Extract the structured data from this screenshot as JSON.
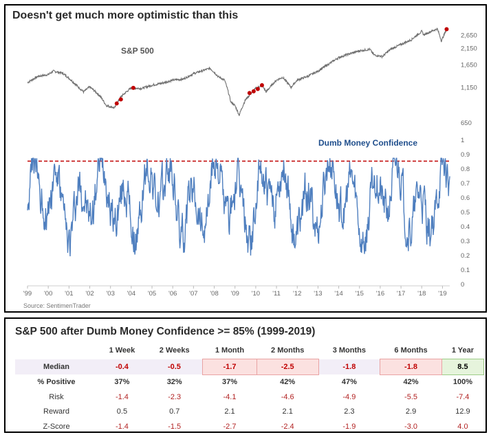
{
  "chart": {
    "title": "Doesn't get much more optimistic than this",
    "source": "Source: SentimenTrader",
    "colors": {
      "sp500": "#6e6e6e",
      "dmc": "#4f7fbf",
      "threshold": "#c00000",
      "marker": "#c00000"
    }
  },
  "chart_data": {
    "type": "line",
    "x_ticks": [
      "'99",
      "'00",
      "'01",
      "'02",
      "'03",
      "'04",
      "'05",
      "'06",
      "'07",
      "'08",
      "'09",
      "'10",
      "'11",
      "'12",
      "'13",
      "'14",
      "'15",
      "'16",
      "'17",
      "'18",
      "'19"
    ],
    "panels": [
      {
        "name": "S&P 500",
        "label": "S&P 500",
        "yticks": [
          "2,650",
          "2,150",
          "1,650",
          "1,150",
          "650"
        ],
        "scale": "log",
        "x": [
          1999.0,
          1999.5,
          2000.0,
          2000.25,
          2000.7,
          2001.0,
          2001.3,
          2001.7,
          2002.0,
          2002.5,
          2002.8,
          2003.2,
          2003.5,
          2004.0,
          2004.5,
          2005.0,
          2005.5,
          2006.0,
          2006.5,
          2007.0,
          2007.5,
          2007.8,
          2008.2,
          2008.5,
          2008.8,
          2009.0,
          2009.2,
          2009.5,
          2010.0,
          2010.3,
          2010.5,
          2011.0,
          2011.3,
          2011.7,
          2012.0,
          2012.5,
          2013.0,
          2013.5,
          2014.0,
          2014.5,
          2015.0,
          2015.5,
          2015.7,
          2016.1,
          2016.5,
          2017.0,
          2017.5,
          2018.0,
          2018.1,
          2018.5,
          2018.75,
          2018.95,
          2019.2
        ],
        "y": [
          1230,
          1360,
          1400,
          1480,
          1430,
          1320,
          1200,
          1060,
          1150,
          990,
          850,
          820,
          980,
          1130,
          1120,
          1180,
          1220,
          1280,
          1300,
          1420,
          1500,
          1550,
          1350,
          1280,
          900,
          850,
          730,
          930,
          1120,
          1180,
          1060,
          1280,
          1340,
          1140,
          1280,
          1360,
          1480,
          1650,
          1840,
          1950,
          2050,
          2100,
          1920,
          1870,
          2100,
          2270,
          2450,
          2800,
          2650,
          2820,
          2920,
          2400,
          2900
        ],
        "markers": [
          [
            2003.3,
            880
          ],
          [
            2003.5,
            940
          ],
          [
            2004.1,
            1130
          ],
          [
            2009.7,
            1040
          ],
          [
            2009.9,
            1070
          ],
          [
            2010.1,
            1110
          ],
          [
            2010.3,
            1180
          ],
          [
            2019.2,
            2900
          ]
        ]
      },
      {
        "name": "Dumb Money Confidence",
        "label": "Dumb Money Confidence",
        "yticks": [
          "1",
          "0.9",
          "0.8",
          "0.7",
          "0.6",
          "0.5",
          "0.4",
          "0.3",
          "0.2",
          "0.1",
          "0"
        ],
        "ylim": [
          0,
          1
        ],
        "threshold": 0.85
      }
    ]
  },
  "table": {
    "title": "S&P 500 after Dumb Money Confidence >= 85% (1999-2019)",
    "columns": [
      "1 Week",
      "2 Weeks",
      "1 Month",
      "2 Months",
      "3 Months",
      "6 Months",
      "1 Year"
    ],
    "rows": [
      {
        "label": "Median",
        "values": [
          "-0.4",
          "-0.5",
          "-1.7",
          "-2.5",
          "-1.8",
          "-1.8",
          "8.5"
        ]
      },
      {
        "label": "% Positive",
        "values": [
          "37%",
          "32%",
          "37%",
          "42%",
          "47%",
          "42%",
          "100%"
        ]
      },
      {
        "label": "Risk",
        "values": [
          "-1.4",
          "-2.3",
          "-4.1",
          "-4.6",
          "-4.9",
          "-5.5",
          "-7.4"
        ]
      },
      {
        "label": "Reward",
        "values": [
          "0.5",
          "0.7",
          "2.1",
          "2.1",
          "2.3",
          "2.9",
          "12.9"
        ]
      },
      {
        "label": "Z-Score",
        "values": [
          "-1.4",
          "-1.5",
          "-2.7",
          "-2.4",
          "-1.9",
          "-3.0",
          "4.0"
        ]
      }
    ]
  }
}
